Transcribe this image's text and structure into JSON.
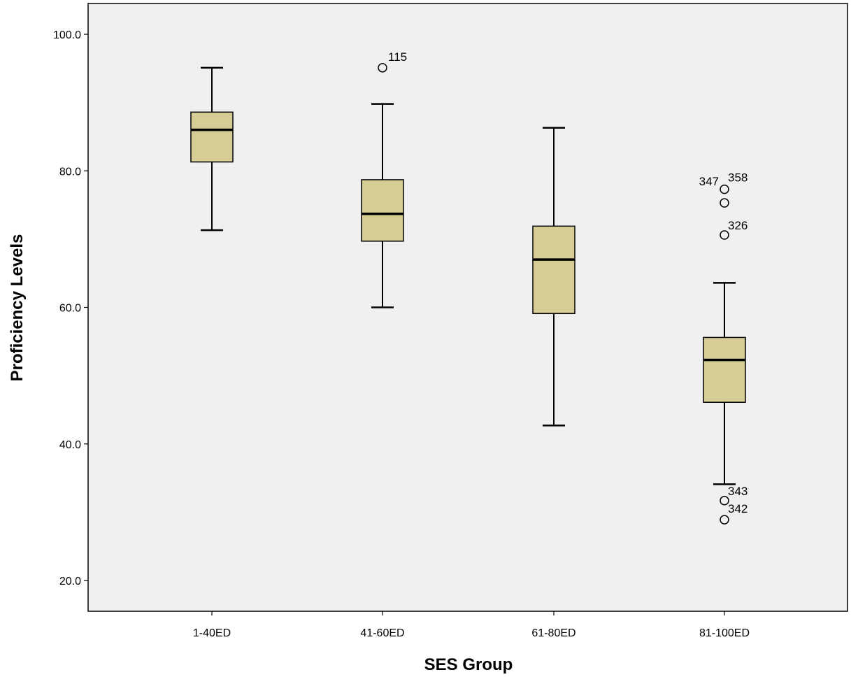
{
  "chart_data": {
    "type": "boxplot",
    "xlabel": "SES Group",
    "ylabel": "Proficiency Levels",
    "ylim": [
      15.5,
      104.5
    ],
    "yticks": [
      20.0,
      40.0,
      60.0,
      80.0,
      100.0
    ],
    "ytick_labels": [
      "20.0",
      "40.0",
      "60.0",
      "80.0",
      "100.0"
    ],
    "grid": false,
    "colors": {
      "plot_background": "#f0f0f0",
      "box_fill": "#d6cd96",
      "stroke": "#000000"
    },
    "categories": [
      "1-40ED",
      "41-60ED",
      "61-80ED",
      "81-100ED"
    ],
    "boxes": [
      {
        "whisker_low": 71.3,
        "q1": 81.3,
        "median": 86.0,
        "q3": 88.6,
        "whisker_high": 95.1,
        "outliers": []
      },
      {
        "whisker_low": 60.0,
        "q1": 69.7,
        "median": 73.7,
        "q3": 78.7,
        "whisker_high": 89.8,
        "outliers": [
          {
            "value": 95.1,
            "label": "115"
          }
        ]
      },
      {
        "whisker_low": 42.7,
        "q1": 59.1,
        "median": 67.0,
        "q3": 71.9,
        "whisker_high": 86.3,
        "outliers": []
      },
      {
        "whisker_low": 34.1,
        "q1": 46.1,
        "median": 52.3,
        "q3": 55.6,
        "whisker_high": 63.6,
        "outliers": [
          {
            "value": 77.3,
            "label": "358"
          },
          {
            "value": 75.3,
            "label": "347"
          },
          {
            "value": 70.6,
            "label": "326"
          },
          {
            "value": 31.7,
            "label": "343"
          },
          {
            "value": 28.9,
            "label": "342"
          }
        ]
      }
    ]
  }
}
